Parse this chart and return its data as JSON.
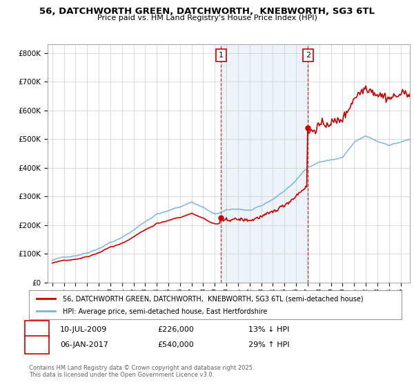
{
  "title": "56, DATCHWORTH GREEN, DATCHWORTH,  KNEBWORTH, SG3 6TL",
  "subtitle": "Price paid vs. HM Land Registry's House Price Index (HPI)",
  "legend_line1": "56, DATCHWORTH GREEN, DATCHWORTH,  KNEBWORTH, SG3 6TL (semi-detached house)",
  "legend_line2": "HPI: Average price, semi-detached house, East Hertfordshire",
  "annotation1_date": "10-JUL-2009",
  "annotation1_price": "£226,000",
  "annotation1_pct": "13% ↓ HPI",
  "annotation2_date": "06-JAN-2017",
  "annotation2_price": "£540,000",
  "annotation2_pct": "29% ↑ HPI",
  "footnote": "Contains HM Land Registry data © Crown copyright and database right 2025.\nThis data is licensed under the Open Government Licence v3.0.",
  "sale1_year": 2009.53,
  "sale1_price": 226000,
  "sale2_year": 2017.02,
  "sale2_price": 540000,
  "price_color": "#cc0000",
  "hpi_color": "#7ab3d4",
  "vline_color": "#cc0000",
  "shade_color": "#cce0f0",
  "shade_alpha": 0.35,
  "background_color": "#ffffff",
  "ylim_min": 0,
  "ylim_max": 830000,
  "ytick_step": 100000,
  "xmin": 1994.6,
  "xmax": 2025.8
}
